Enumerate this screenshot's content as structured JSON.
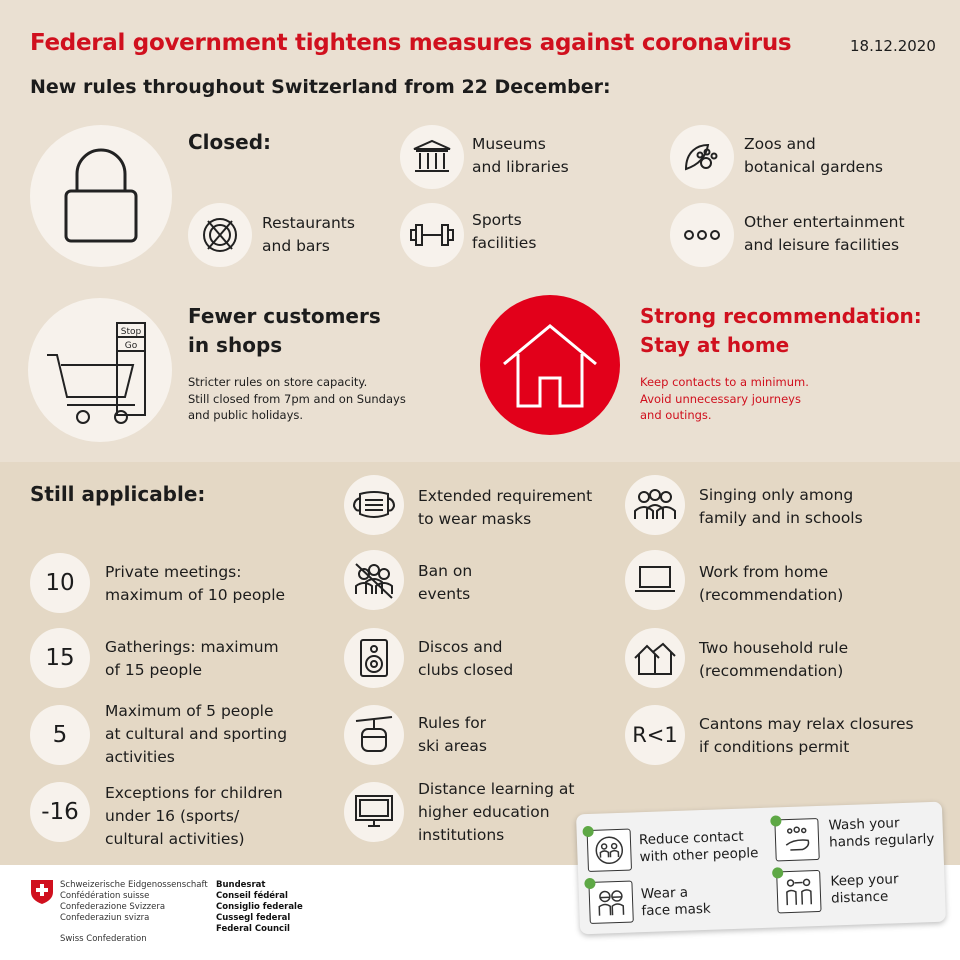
{
  "header": {
    "title": "Federal government tightens measures against coronavirus",
    "date": "18.12.2020",
    "subtitle": "New rules throughout Switzerland from 22 December:"
  },
  "closed": {
    "heading": "Closed:",
    "items": [
      {
        "label1": "Museums",
        "label2": "and libraries",
        "icon": "museum-icon"
      },
      {
        "label1": "Zoos and",
        "label2": "botanical gardens",
        "icon": "paw-leaf-icon"
      },
      {
        "label1": "Restaurants",
        "label2": "and bars",
        "icon": "cutlery-crossed-icon"
      },
      {
        "label1": "Sports",
        "label2": "facilities",
        "icon": "dumbbell-icon"
      },
      {
        "label1": "Other entertainment",
        "label2": "and leisure facilities",
        "icon": "dots-icon"
      }
    ]
  },
  "shops": {
    "heading1": "Fewer customers",
    "heading2": "in shops",
    "lines": [
      "Stricter rules on store capacity.",
      "Still closed from 7pm and on Sundays",
      "and public holidays."
    ],
    "stop": "Stop",
    "go": "Go"
  },
  "home": {
    "heading1": "Strong recommendation:",
    "heading2": "Stay at home",
    "lines": [
      "Keep contacts to a minimum.",
      "Avoid unnecessary journeys",
      "and outings."
    ]
  },
  "still": {
    "heading": "Still applicable:",
    "left": [
      {
        "num": "10",
        "l1": "Private meetings:",
        "l2": "maximum of 10 people",
        "l3": ""
      },
      {
        "num": "15",
        "l1": "Gatherings: maximum",
        "l2": "of 15 people",
        "l3": ""
      },
      {
        "num": "5",
        "l1": "Maximum of 5 people",
        "l2": "at cultural and sporting",
        "l3": "activities"
      },
      {
        "num": "-16",
        "l1": "Exceptions for children",
        "l2": "under 16 (sports/",
        "l3": "cultural activities)"
      }
    ],
    "middle": [
      {
        "l1": "Extended requirement",
        "l2": "to wear masks",
        "l3": ""
      },
      {
        "l1": "Ban on",
        "l2": "events",
        "l3": ""
      },
      {
        "l1": "Discos and",
        "l2": "clubs closed",
        "l3": ""
      },
      {
        "l1": "Rules for",
        "l2": "ski areas",
        "l3": ""
      },
      {
        "l1": "Distance learning at",
        "l2": "higher education",
        "l3": "institutions"
      }
    ],
    "right": [
      {
        "l1": "Singing only among",
        "l2": "family and in schools"
      },
      {
        "l1": "Work from home",
        "l2": "(recommendation)"
      },
      {
        "l1": "Two household rule",
        "l2": "(recommendation)"
      },
      {
        "l1": "Cantons may relax closures",
        "l2": "if conditions permit",
        "badge": "R<1"
      }
    ]
  },
  "card": {
    "items": [
      {
        "l1": "Reduce contact",
        "l2": "with other people"
      },
      {
        "l1": "Wash your",
        "l2": "hands regularly"
      },
      {
        "l1": "Wear a",
        "l2": "face mask"
      },
      {
        "l1": "Keep your",
        "l2": "distance"
      }
    ]
  },
  "footer": {
    "names": [
      "Schweizerische Eidgenossenschaft",
      "Confédération suisse",
      "Confederazione Svizzera",
      "Confederaziun svizra"
    ],
    "english": "Swiss Confederation",
    "council": [
      "Bundesrat",
      "Conseil fédéral",
      "Consiglio federale",
      "Cussegl federal",
      "Federal Council"
    ]
  },
  "colors": {
    "red": "#d0101e",
    "top_bg": "#eae0d2",
    "lower_bg": "#e4d8c5",
    "check": "#5ea845"
  }
}
